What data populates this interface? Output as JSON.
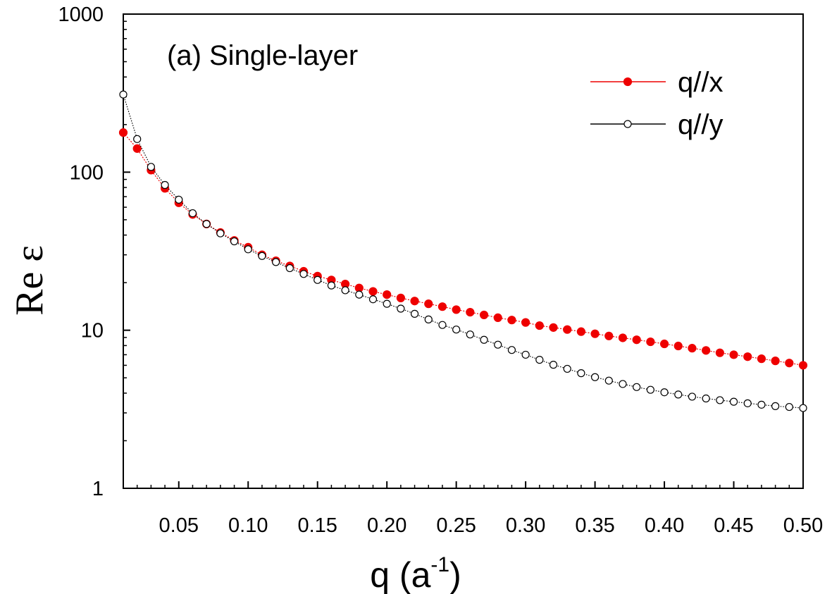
{
  "chart_data": {
    "type": "scatter",
    "panel_label": "(a) Single-layer",
    "xlabel": {
      "main": "q (a",
      "sup": "-1",
      "close": ")"
    },
    "ylabel": "Re ε",
    "xlim": [
      0.01,
      0.5
    ],
    "ylim": [
      1,
      1000
    ],
    "yscale": "log",
    "x_ticks": [
      {
        "value": 0.05,
        "label": "0.05"
      },
      {
        "value": 0.1,
        "label": "0.10"
      },
      {
        "value": 0.15,
        "label": "0.15"
      },
      {
        "value": 0.2,
        "label": "0.20"
      },
      {
        "value": 0.25,
        "label": "0.25"
      },
      {
        "value": 0.3,
        "label": "0.30"
      },
      {
        "value": 0.35,
        "label": "0.35"
      },
      {
        "value": 0.4,
        "label": "0.40"
      },
      {
        "value": 0.45,
        "label": "0.45"
      },
      {
        "value": 0.5,
        "label": "0.50"
      }
    ],
    "y_ticks": [
      {
        "value": 1,
        "label": "1"
      },
      {
        "value": 10,
        "label": "10"
      },
      {
        "value": 100,
        "label": "100"
      },
      {
        "value": 1000,
        "label": "1000"
      }
    ],
    "grid": false,
    "legend_position": "top-right",
    "series": [
      {
        "name": "q//x",
        "color": "#ee0000",
        "marker": "filled-circle",
        "x": [
          0.01,
          0.02,
          0.03,
          0.04,
          0.05,
          0.06,
          0.07,
          0.08,
          0.09,
          0.1,
          0.11,
          0.12,
          0.13,
          0.14,
          0.15,
          0.16,
          0.17,
          0.18,
          0.19,
          0.2,
          0.21,
          0.22,
          0.23,
          0.24,
          0.25,
          0.26,
          0.27,
          0.28,
          0.29,
          0.3,
          0.31,
          0.32,
          0.33,
          0.34,
          0.35,
          0.36,
          0.37,
          0.38,
          0.39,
          0.4,
          0.41,
          0.42,
          0.43,
          0.44,
          0.45,
          0.46,
          0.47,
          0.48,
          0.49,
          0.5
        ],
        "y": [
          178,
          141,
          103,
          79,
          64,
          54,
          47,
          41.5,
          37,
          33.5,
          30,
          27.5,
          25.5,
          23.6,
          22,
          20.8,
          19.6,
          18.5,
          17.6,
          16.8,
          16,
          15.3,
          14.7,
          14.1,
          13.5,
          13,
          12.5,
          12,
          11.6,
          11.2,
          10.7,
          10.4,
          10.1,
          9.8,
          9.5,
          9.2,
          8.95,
          8.7,
          8.45,
          8.2,
          7.95,
          7.7,
          7.45,
          7.2,
          7,
          6.8,
          6.6,
          6.4,
          6.2,
          6
        ]
      },
      {
        "name": "q//y",
        "color": "#000000",
        "marker": "open-circle",
        "x": [
          0.01,
          0.02,
          0.03,
          0.04,
          0.05,
          0.06,
          0.07,
          0.08,
          0.09,
          0.1,
          0.11,
          0.12,
          0.13,
          0.14,
          0.15,
          0.16,
          0.17,
          0.18,
          0.19,
          0.2,
          0.21,
          0.22,
          0.23,
          0.24,
          0.25,
          0.26,
          0.27,
          0.28,
          0.29,
          0.3,
          0.31,
          0.32,
          0.33,
          0.34,
          0.35,
          0.36,
          0.37,
          0.38,
          0.39,
          0.4,
          0.41,
          0.42,
          0.43,
          0.44,
          0.45,
          0.46,
          0.47,
          0.48,
          0.49,
          0.5
        ],
        "y": [
          310,
          162,
          108,
          83,
          67,
          55,
          47,
          41,
          36.5,
          32.5,
          29.5,
          27,
          24.7,
          22.7,
          20.8,
          19.2,
          17.9,
          16.8,
          15.7,
          14.7,
          13.7,
          12.7,
          11.7,
          10.8,
          10.1,
          9.4,
          8.7,
          8.1,
          7.5,
          7,
          6.5,
          6.05,
          5.7,
          5.35,
          5.05,
          4.8,
          4.57,
          4.37,
          4.2,
          4.05,
          3.92,
          3.8,
          3.7,
          3.61,
          3.53,
          3.45,
          3.38,
          3.31,
          3.27,
          3.22
        ]
      }
    ]
  }
}
